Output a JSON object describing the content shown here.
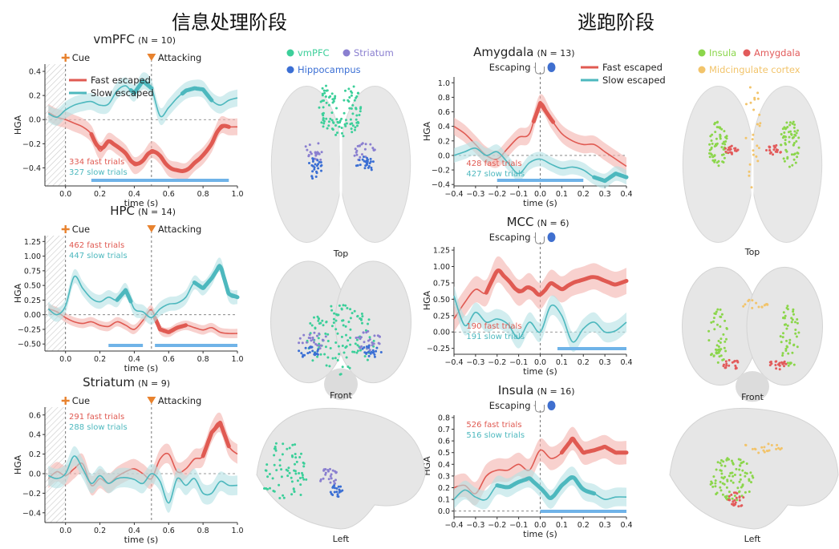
{
  "sections": {
    "left_title": "信息处理阶段",
    "right_title": "逃跑阶段"
  },
  "colors": {
    "fast": "#e05a52",
    "slow": "#4db8be",
    "fast_band": "#f4b3ad",
    "slow_band": "#b4e1e4",
    "sig": "#6fb3e8",
    "cue_marker": "#e8822e",
    "attack_marker": "#e8822e",
    "vmpfc": "#3ccf9a",
    "striatum": "#8a7fd0",
    "hippocampus": "#3b6fd4",
    "insula": "#8bd64b",
    "amygdala": "#e25b5b",
    "mcc": "#f2c46b"
  },
  "event_labels": {
    "cue": "Cue",
    "attack": "Attacking",
    "escape": "Escaping"
  },
  "chart_data": [
    {
      "id": "vmpfc",
      "type": "line",
      "title": "vmPFC",
      "n_label": "(N = 10)",
      "xlabel": "time (s)",
      "ylabel": "HGA",
      "xlim": [
        -0.12,
        1.0
      ],
      "ylim": [
        -0.55,
        0.46
      ],
      "xticks": [
        0.0,
        0.2,
        0.4,
        0.6,
        0.8,
        1.0
      ],
      "xtick_labels": [
        "0.0",
        "0.2",
        "0.4",
        "0.6",
        "0.8",
        "1.0"
      ],
      "yticks": [
        -0.4,
        -0.2,
        0.0,
        0.2,
        0.4
      ],
      "ytick_labels": [
        "−0.4",
        "−0.2",
        "0.0",
        "0.2",
        "0.4"
      ],
      "events": [
        {
          "t": 0.0,
          "kind": "cue"
        },
        {
          "t": 0.5,
          "kind": "attack"
        }
      ],
      "legend": [
        "Fast escaped",
        "Slow escaped"
      ],
      "counts": [
        "334 fast trials",
        "327 slow trials"
      ],
      "sig_bars": [
        [
          0.15,
          0.95
        ]
      ],
      "x": [
        -0.1,
        -0.05,
        0.0,
        0.05,
        0.1,
        0.15,
        0.2,
        0.25,
        0.3,
        0.35,
        0.4,
        0.45,
        0.5,
        0.55,
        0.6,
        0.65,
        0.7,
        0.75,
        0.8,
        0.85,
        0.9,
        0.95,
        1.0
      ],
      "series": [
        {
          "name": "Fast escaped",
          "color": "fast",
          "values": [
            0.06,
            0.02,
            0.0,
            -0.03,
            -0.06,
            -0.12,
            -0.26,
            -0.18,
            -0.22,
            -0.28,
            -0.38,
            -0.34,
            -0.25,
            -0.3,
            -0.4,
            -0.42,
            -0.43,
            -0.36,
            -0.3,
            -0.2,
            -0.05,
            -0.06,
            -0.06
          ],
          "band": 0.07,
          "thick": [
            [
              0.15,
              0.95
            ]
          ]
        },
        {
          "name": "Slow escaped",
          "color": "slow",
          "values": [
            0.05,
            0.02,
            0.08,
            0.12,
            0.14,
            0.15,
            0.12,
            0.13,
            0.24,
            0.28,
            0.22,
            0.32,
            0.26,
            0.03,
            0.1,
            0.18,
            0.24,
            0.26,
            0.25,
            0.16,
            0.12,
            0.16,
            0.18
          ],
          "band": 0.07,
          "thick": [
            [
              0.38,
              0.5
            ],
            [
              0.68,
              0.85
            ]
          ]
        }
      ]
    },
    {
      "id": "hpc",
      "type": "line",
      "title": "HPC",
      "n_label": "(N = 14)",
      "xlabel": "time (s)",
      "ylabel": "HGA",
      "xlim": [
        -0.12,
        1.0
      ],
      "ylim": [
        -0.62,
        1.35
      ],
      "xticks": [
        0.0,
        0.2,
        0.4,
        0.6,
        0.8,
        1.0
      ],
      "xtick_labels": [
        "0.0",
        "0.2",
        "0.4",
        "0.6",
        "0.8",
        "1.0"
      ],
      "yticks": [
        -0.5,
        -0.25,
        0.0,
        0.25,
        0.5,
        0.75,
        1.0,
        1.25
      ],
      "ytick_labels": [
        "−0.50",
        "−0.25",
        "0.00",
        "0.25",
        "0.50",
        "0.75",
        "1.00",
        "1.25"
      ],
      "events": [
        {
          "t": 0.0,
          "kind": "cue"
        },
        {
          "t": 0.5,
          "kind": "attack"
        }
      ],
      "legend": [],
      "counts": [
        "462 fast trials",
        "447 slow trials"
      ],
      "sig_bars": [
        [
          0.25,
          0.45
        ],
        [
          0.52,
          1.0
        ]
      ],
      "x": [
        -0.1,
        -0.05,
        0.0,
        0.05,
        0.1,
        0.15,
        0.2,
        0.25,
        0.3,
        0.35,
        0.4,
        0.45,
        0.5,
        0.55,
        0.6,
        0.65,
        0.7,
        0.75,
        0.8,
        0.85,
        0.9,
        0.95,
        1.0
      ],
      "series": [
        {
          "name": "Fast escaped",
          "color": "fast",
          "values": [
            0.1,
            0.05,
            -0.05,
            -0.12,
            -0.15,
            -0.12,
            -0.18,
            -0.2,
            -0.12,
            -0.18,
            -0.25,
            -0.1,
            0.08,
            -0.25,
            -0.3,
            -0.22,
            -0.18,
            -0.22,
            -0.26,
            -0.22,
            -0.3,
            -0.32,
            -0.32
          ],
          "band": 0.08,
          "thick": [
            [
              0.52,
              0.7
            ]
          ]
        },
        {
          "name": "Slow escaped",
          "color": "slow",
          "values": [
            0.1,
            0.0,
            0.15,
            0.65,
            0.45,
            0.28,
            0.22,
            0.3,
            0.25,
            0.42,
            0.1,
            0.05,
            -0.05,
            0.1,
            0.18,
            0.2,
            0.3,
            0.55,
            0.45,
            0.62,
            0.85,
            0.35,
            0.3
          ],
          "band": 0.12,
          "thick": [
            [
              0.3,
              0.38
            ],
            [
              0.75,
              1.0
            ]
          ]
        }
      ]
    },
    {
      "id": "striatum",
      "type": "line",
      "title": "Striatum",
      "n_label": "(N = 9)",
      "xlabel": "time (s)",
      "ylabel": "HGA",
      "xlim": [
        -0.12,
        1.0
      ],
      "ylim": [
        -0.5,
        0.68
      ],
      "xticks": [
        0.0,
        0.2,
        0.4,
        0.6,
        0.8,
        1.0
      ],
      "xtick_labels": [
        "0.0",
        "0.2",
        "0.4",
        "0.6",
        "0.8",
        "1.0"
      ],
      "yticks": [
        -0.4,
        -0.2,
        0.0,
        0.2,
        0.4,
        0.6
      ],
      "ytick_labels": [
        "−0.4",
        "−0.2",
        "0.0",
        "0.2",
        "0.4",
        "0.6"
      ],
      "events": [
        {
          "t": 0.0,
          "kind": "cue"
        },
        {
          "t": 0.5,
          "kind": "attack"
        }
      ],
      "legend": [],
      "counts": [
        "291 fast trials",
        "288 slow trials"
      ],
      "sig_bars": [],
      "x": [
        -0.1,
        -0.05,
        0.0,
        0.05,
        0.1,
        0.15,
        0.2,
        0.25,
        0.3,
        0.35,
        0.4,
        0.45,
        0.5,
        0.55,
        0.6,
        0.65,
        0.7,
        0.75,
        0.8,
        0.85,
        0.9,
        0.95,
        1.0
      ],
      "series": [
        {
          "name": "Fast escaped",
          "color": "fast",
          "values": [
            -0.05,
            0.02,
            -0.02,
            0.05,
            0.1,
            -0.12,
            -0.05,
            -0.1,
            -0.03,
            0.02,
            0.05,
            0.0,
            -0.05,
            0.15,
            0.2,
            0.02,
            0.05,
            0.15,
            0.18,
            0.42,
            0.52,
            0.28,
            0.2
          ],
          "band": 0.1,
          "thick": [
            [
              0.8,
              0.95
            ]
          ]
        },
        {
          "name": "Slow escaped",
          "color": "slow",
          "values": [
            -0.02,
            -0.05,
            0.0,
            0.18,
            0.05,
            -0.1,
            -0.02,
            -0.1,
            -0.05,
            -0.04,
            -0.06,
            -0.1,
            0.0,
            -0.08,
            -0.3,
            -0.05,
            -0.12,
            -0.05,
            -0.2,
            -0.2,
            -0.08,
            -0.12,
            -0.12
          ],
          "band": 0.1,
          "thick": []
        }
      ]
    },
    {
      "id": "amygdala",
      "type": "line",
      "title": "Amygdala",
      "n_label": "(N = 13)",
      "xlabel": "time (s)",
      "ylabel": "HGA",
      "xlim": [
        -0.4,
        0.4
      ],
      "ylim": [
        -0.42,
        1.08
      ],
      "xticks": [
        -0.4,
        -0.3,
        -0.2,
        -0.1,
        0.0,
        0.1,
        0.2,
        0.3,
        0.4
      ],
      "xtick_labels": [
        "−0.4",
        "−0.3",
        "−0.2",
        "−0.1",
        "0.0",
        "0.1",
        "0.2",
        "0.3",
        "0.4"
      ],
      "yticks": [
        -0.4,
        -0.2,
        0.0,
        0.2,
        0.4,
        0.6,
        0.8,
        1.0
      ],
      "ytick_labels": [
        "−0.4",
        "−0.2",
        "0.0",
        "0.2",
        "0.4",
        "0.6",
        "0.8",
        "1.0"
      ],
      "events": [
        {
          "t": 0.0,
          "kind": "escape"
        }
      ],
      "legend": [
        "Fast escaped",
        "Slow escaped"
      ],
      "counts": [
        "428 fast trials",
        "427 slow trials"
      ],
      "sig_bars": [
        [
          -0.2,
          0.2
        ]
      ],
      "x": [
        -0.4,
        -0.35,
        -0.3,
        -0.25,
        -0.2,
        -0.15,
        -0.1,
        -0.05,
        0.0,
        0.05,
        0.1,
        0.15,
        0.2,
        0.25,
        0.3,
        0.35,
        0.4
      ],
      "series": [
        {
          "name": "Fast escaped",
          "color": "fast",
          "values": [
            0.4,
            0.3,
            0.15,
            0.0,
            -0.05,
            0.1,
            0.25,
            0.3,
            0.72,
            0.5,
            0.3,
            0.2,
            0.15,
            0.15,
            0.05,
            -0.05,
            -0.15
          ],
          "band": 0.12,
          "thick": [
            [
              -0.03,
              0.06
            ]
          ]
        },
        {
          "name": "Slow escaped",
          "color": "slow",
          "values": [
            0.0,
            0.05,
            0.1,
            0.0,
            0.05,
            -0.1,
            -0.25,
            -0.1,
            -0.05,
            -0.12,
            -0.18,
            -0.16,
            -0.2,
            -0.3,
            -0.35,
            -0.25,
            -0.3
          ],
          "band": 0.1,
          "thick": [
            [
              0.25,
              0.4
            ]
          ]
        }
      ]
    },
    {
      "id": "mcc",
      "type": "line",
      "title": "MCC",
      "n_label": "(N = 6)",
      "xlabel": "time (s)",
      "ylabel": "HGA",
      "xlim": [
        -0.4,
        0.4
      ],
      "ylim": [
        -0.34,
        1.3
      ],
      "xticks": [
        -0.4,
        -0.3,
        -0.2,
        -0.1,
        0.0,
        0.1,
        0.2,
        0.3,
        0.4
      ],
      "xtick_labels": [
        "−0.4",
        "−0.3",
        "−0.2",
        "−0.1",
        "0.0",
        "0.1",
        "0.2",
        "0.3",
        "0.4"
      ],
      "yticks": [
        -0.25,
        0.0,
        0.25,
        0.5,
        0.75,
        1.0,
        1.25
      ],
      "ytick_labels": [
        "−0.25",
        "0.00",
        "0.25",
        "0.50",
        "0.75",
        "1.00",
        "1.25"
      ],
      "events": [
        {
          "t": 0.0,
          "kind": "escape"
        }
      ],
      "legend": [],
      "counts": [
        "190 fast trials",
        "191 slow trials"
      ],
      "sig_bars": [
        [
          0.08,
          0.4
        ]
      ],
      "x": [
        -0.4,
        -0.35,
        -0.3,
        -0.25,
        -0.2,
        -0.15,
        -0.1,
        -0.05,
        0.0,
        0.05,
        0.1,
        0.15,
        0.2,
        0.25,
        0.3,
        0.35,
        0.4
      ],
      "series": [
        {
          "name": "Fast escaped",
          "color": "fast",
          "values": [
            0.2,
            0.45,
            0.65,
            0.6,
            0.95,
            0.8,
            0.6,
            0.7,
            0.55,
            0.75,
            0.65,
            0.75,
            0.8,
            0.85,
            0.78,
            0.72,
            0.78
          ],
          "band": 0.2,
          "thick": [
            [
              -0.25,
              0.4
            ]
          ]
        },
        {
          "name": "Slow escaped",
          "color": "slow",
          "values": [
            0.55,
            0.1,
            0.3,
            0.15,
            0.2,
            0.12,
            -0.1,
            0.15,
            0.0,
            0.4,
            0.25,
            -0.15,
            0.05,
            0.15,
            0.0,
            0.02,
            0.15
          ],
          "band": 0.15,
          "thick": []
        }
      ]
    },
    {
      "id": "insula",
      "type": "line",
      "title": "Insula",
      "n_label": "(N = 16)",
      "xlabel": "time (s)",
      "ylabel": "HGA",
      "xlim": [
        -0.4,
        0.4
      ],
      "ylim": [
        -0.05,
        0.82
      ],
      "xticks": [
        -0.4,
        -0.3,
        -0.2,
        -0.1,
        0.0,
        0.1,
        0.2,
        0.3,
        0.4
      ],
      "xtick_labels": [
        "−0.4",
        "−0.3",
        "−0.2",
        "−0.1",
        "0.0",
        "0.1",
        "0.2",
        "0.3",
        "0.4"
      ],
      "yticks": [
        0.0,
        0.1,
        0.2,
        0.3,
        0.4,
        0.5,
        0.6,
        0.7,
        0.8
      ],
      "ytick_labels": [
        "0.0",
        "0.1",
        "0.2",
        "0.3",
        "0.4",
        "0.5",
        "0.6",
        "0.7",
        "0.8"
      ],
      "events": [
        {
          "t": 0.0,
          "kind": "escape"
        }
      ],
      "legend": [],
      "counts": [
        "526 fast trials",
        "516 slow trials"
      ],
      "sig_bars": [
        [
          0.0,
          0.4
        ]
      ],
      "x": [
        -0.4,
        -0.35,
        -0.3,
        -0.25,
        -0.2,
        -0.15,
        -0.1,
        -0.05,
        0.0,
        0.05,
        0.1,
        0.15,
        0.2,
        0.25,
        0.3,
        0.35,
        0.4
      ],
      "series": [
        {
          "name": "Fast escaped",
          "color": "fast",
          "values": [
            0.2,
            0.22,
            0.15,
            0.3,
            0.35,
            0.35,
            0.4,
            0.35,
            0.52,
            0.45,
            0.5,
            0.62,
            0.5,
            0.52,
            0.55,
            0.5,
            0.5
          ],
          "band": 0.1,
          "thick": [
            [
              0.1,
              0.4
            ]
          ]
        },
        {
          "name": "Slow escaped",
          "color": "slow",
          "values": [
            0.1,
            0.18,
            0.12,
            0.1,
            0.22,
            0.2,
            0.25,
            0.28,
            0.2,
            0.1,
            0.22,
            0.3,
            0.18,
            0.15,
            0.1,
            0.12,
            0.12
          ],
          "band": 0.08,
          "thick": [
            [
              -0.2,
              0.25
            ]
          ]
        }
      ]
    }
  ],
  "brain_legends": {
    "left": [
      {
        "label": "vmPFC",
        "color": "vmpfc"
      },
      {
        "label": "Striatum",
        "color": "striatum"
      },
      {
        "label": "Hippocampus",
        "color": "hippocampus"
      }
    ],
    "right": [
      {
        "label": "Insula",
        "color": "insula"
      },
      {
        "label": "Amygdala",
        "color": "amygdala"
      },
      {
        "label": "Midcingulate cortex",
        "color": "mcc"
      }
    ]
  },
  "brain_views": [
    "Top",
    "Front",
    "Left"
  ]
}
